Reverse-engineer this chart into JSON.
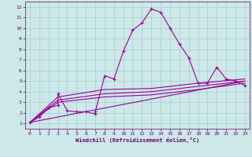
{
  "xlabel": "Windchill (Refroidissement éolien,°C)",
  "bg_color": "#cce8e8",
  "grid_color": "#aacccc",
  "line_color": "#990099",
  "spine_color": "#660066",
  "tick_color": "#660066",
  "xlim": [
    -0.5,
    23.5
  ],
  "ylim": [
    0.5,
    12.5
  ],
  "xticks": [
    0,
    1,
    2,
    3,
    4,
    5,
    6,
    7,
    8,
    9,
    10,
    11,
    12,
    13,
    14,
    15,
    16,
    17,
    18,
    19,
    20,
    21,
    22,
    23
  ],
  "yticks": [
    1,
    2,
    3,
    4,
    5,
    6,
    7,
    8,
    9,
    10,
    11,
    12
  ],
  "main_x": [
    0,
    1,
    2,
    3,
    3,
    4,
    5,
    6,
    7,
    7,
    8,
    9,
    10,
    11,
    12,
    13,
    14,
    15,
    16,
    17,
    18,
    19,
    20,
    21,
    22,
    23
  ],
  "main_y": [
    1.1,
    1.6,
    2.5,
    2.7,
    3.8,
    2.2,
    2.1,
    2.1,
    1.9,
    2.1,
    5.5,
    5.2,
    7.8,
    9.8,
    10.5,
    11.8,
    11.5,
    10.0,
    8.5,
    7.2,
    4.8,
    4.8,
    6.3,
    5.2,
    5.0,
    4.6
  ],
  "trend1_x": [
    0,
    23
  ],
  "trend1_y": [
    1.1,
    5.0
  ],
  "trend2_x": [
    0,
    3,
    8,
    13,
    18,
    23
  ],
  "trend2_y": [
    1.1,
    3.5,
    4.2,
    4.3,
    4.8,
    5.2
  ],
  "trend3_x": [
    0,
    3,
    8,
    13,
    18,
    23
  ],
  "trend3_y": [
    1.1,
    3.2,
    3.8,
    4.0,
    4.5,
    5.0
  ],
  "trend4_x": [
    0,
    3,
    8,
    13,
    18,
    23
  ],
  "trend4_y": [
    1.1,
    3.0,
    3.5,
    3.7,
    4.2,
    4.8
  ]
}
